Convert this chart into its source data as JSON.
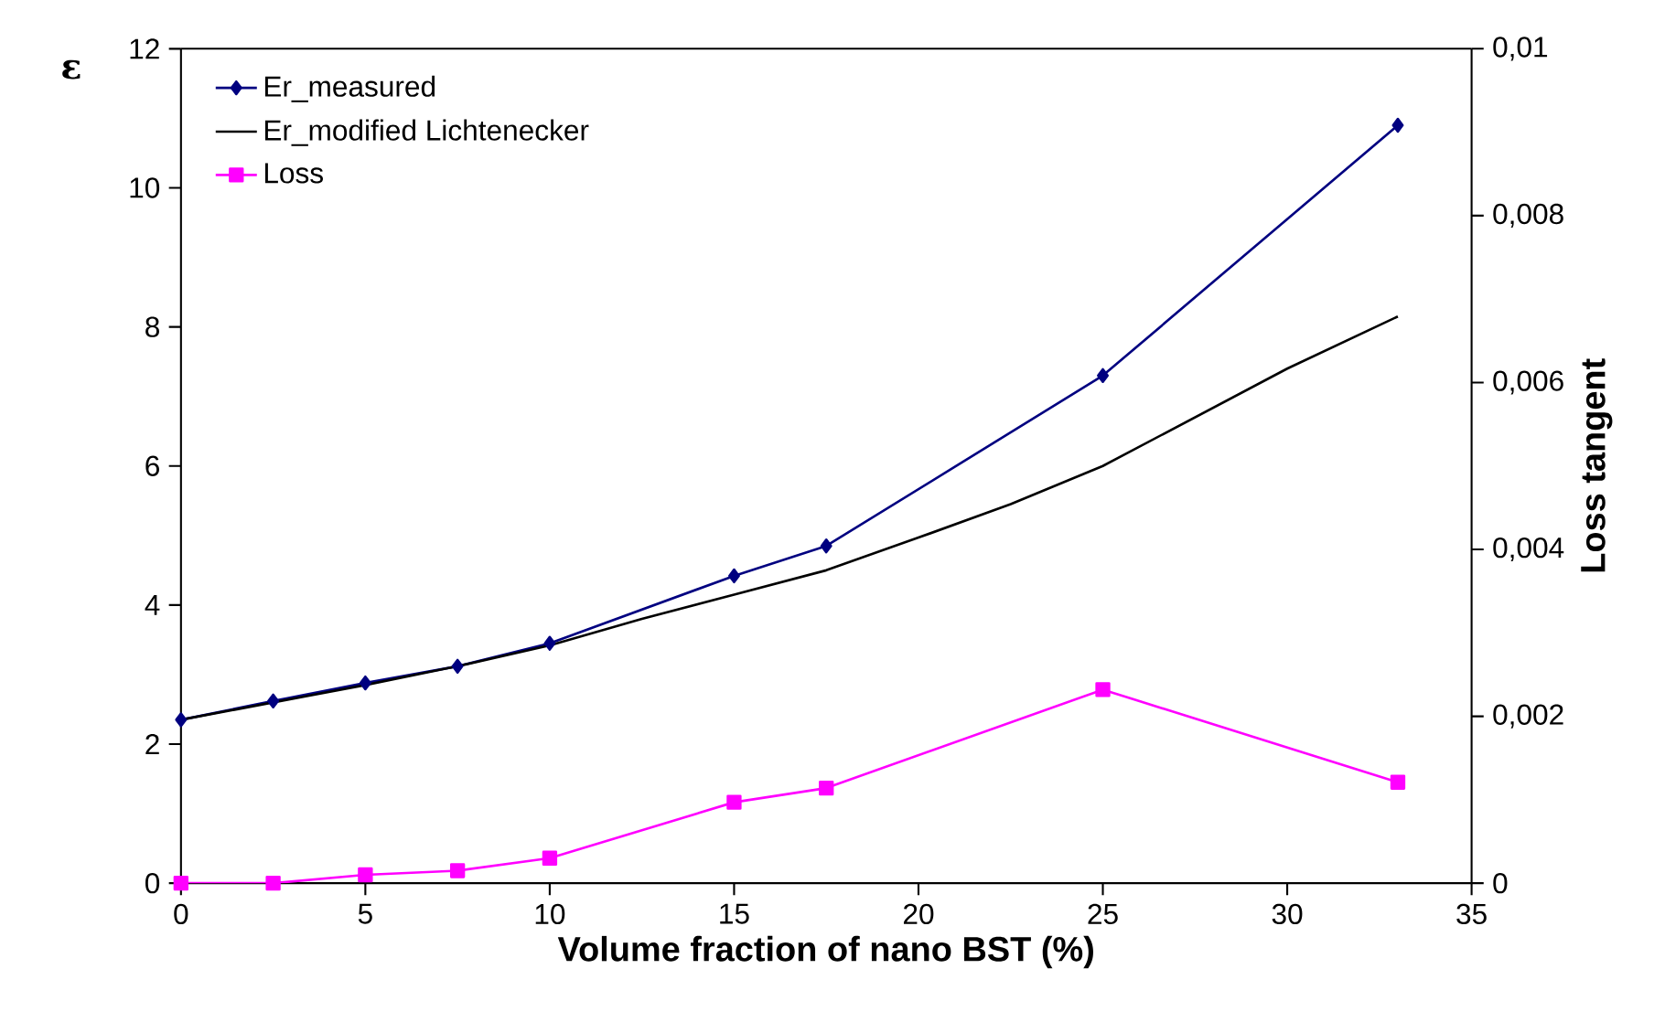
{
  "chart_data": {
    "type": "line",
    "xlabel": "Volume fraction of nano BST (%)",
    "ylabel": "ε",
    "y2label": "Loss tangent",
    "xlim": [
      0,
      35
    ],
    "xticks": [
      0,
      5,
      10,
      15,
      20,
      25,
      30,
      35
    ],
    "ylim": [
      0,
      12
    ],
    "yticks": [
      0,
      2,
      4,
      6,
      8,
      10,
      12
    ],
    "y2lim": [
      0,
      0.01
    ],
    "y2ticks": [
      0,
      {
        "value": 0.002,
        "label": "0,002"
      },
      {
        "value": 0.004,
        "label": "0,004"
      },
      {
        "value": 0.006,
        "label": "0,006"
      },
      {
        "value": 0.008,
        "label": "0,008"
      },
      {
        "value": 0.01,
        "label": "0,01"
      }
    ],
    "legend": "top left",
    "grid": false,
    "series": [
      {
        "name": "Er_measured",
        "color": "#000080",
        "marker": "diamond",
        "x": [
          0,
          2.5,
          5,
          7.5,
          10,
          15,
          17.5,
          25,
          33
        ],
        "values": [
          2.35,
          2.62,
          2.88,
          3.12,
          3.45,
          4.42,
          4.85,
          7.3,
          10.9
        ]
      },
      {
        "name": "Er_modified Lichtenecker",
        "color": "#000000",
        "marker": "none",
        "x": [
          0,
          2.5,
          5,
          7.5,
          10,
          12.5,
          15,
          17.5,
          20,
          22.5,
          25,
          27.5,
          30,
          33
        ],
        "values": [
          2.35,
          2.6,
          2.85,
          3.12,
          3.42,
          3.8,
          4.15,
          4.5,
          4.97,
          5.45,
          6.0,
          6.7,
          7.4,
          8.15
        ]
      },
      {
        "name": "Loss",
        "color": "#ff00ff",
        "marker": "square",
        "axis": "y2",
        "x": [
          0,
          2.5,
          5,
          7.5,
          10,
          15,
          17.5,
          25,
          33
        ],
        "values": [
          0,
          0,
          0.0001,
          0.00015,
          0.0003,
          0.00097,
          0.00114,
          0.00232,
          0.00121
        ]
      }
    ]
  }
}
